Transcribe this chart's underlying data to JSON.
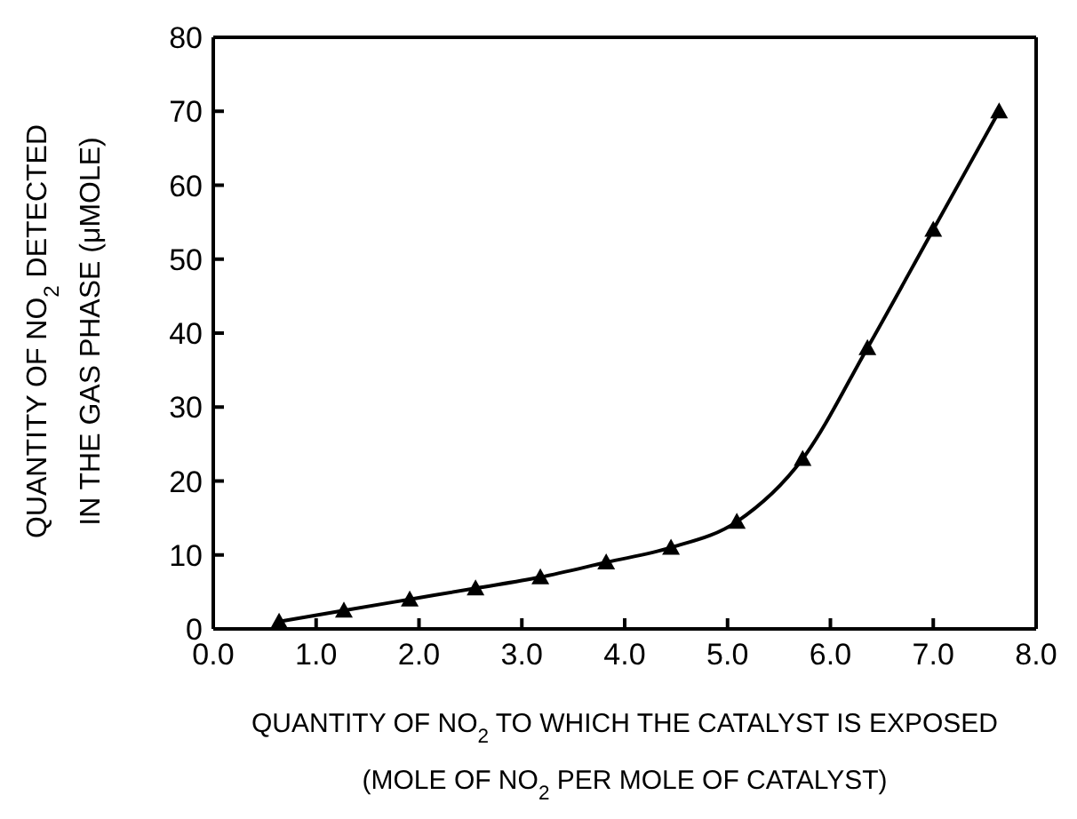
{
  "chart_data": {
    "type": "line",
    "xlabel": "QUANTITY OF NO$_{2}$ TO WHICH THE CATALYST IS EXPOSED\n(MOLE OF NO$_{2}$ PER MOLE OF CATALYST)",
    "ylabel": "QUANTITY OF NO$_{2}$ DETECTED\nIN THE GAS PHASE (μMOLE)",
    "x": [
      0.64,
      1.27,
      1.91,
      2.55,
      3.18,
      3.82,
      4.45,
      5.09,
      5.73,
      6.36,
      7.0,
      7.64
    ],
    "series": [
      {
        "color": "#000000",
        "values": [
          1,
          2.5,
          4,
          5.5,
          7,
          9,
          11,
          14.5,
          23,
          38,
          54,
          70
        ]
      }
    ],
    "xlim": [
      0,
      8
    ],
    "xticks": [
      {
        "value": 0,
        "label": "0.0"
      },
      {
        "value": 1,
        "label": "1.0"
      },
      {
        "value": 2,
        "label": "2.0"
      },
      {
        "value": 3,
        "label": "3.0"
      },
      {
        "value": 4,
        "label": "4.0"
      },
      {
        "value": 5,
        "label": "5.0"
      },
      {
        "value": 6,
        "label": "6.0"
      },
      {
        "value": 7,
        "label": "7.0"
      },
      {
        "value": 8,
        "label": "8.0"
      }
    ],
    "ylim": [
      0,
      80
    ],
    "yticks": [
      0,
      10,
      20,
      30,
      40,
      50,
      60,
      70,
      80
    ],
    "marker": "triangle",
    "line_style": "solid",
    "grid": false,
    "legend": false
  }
}
